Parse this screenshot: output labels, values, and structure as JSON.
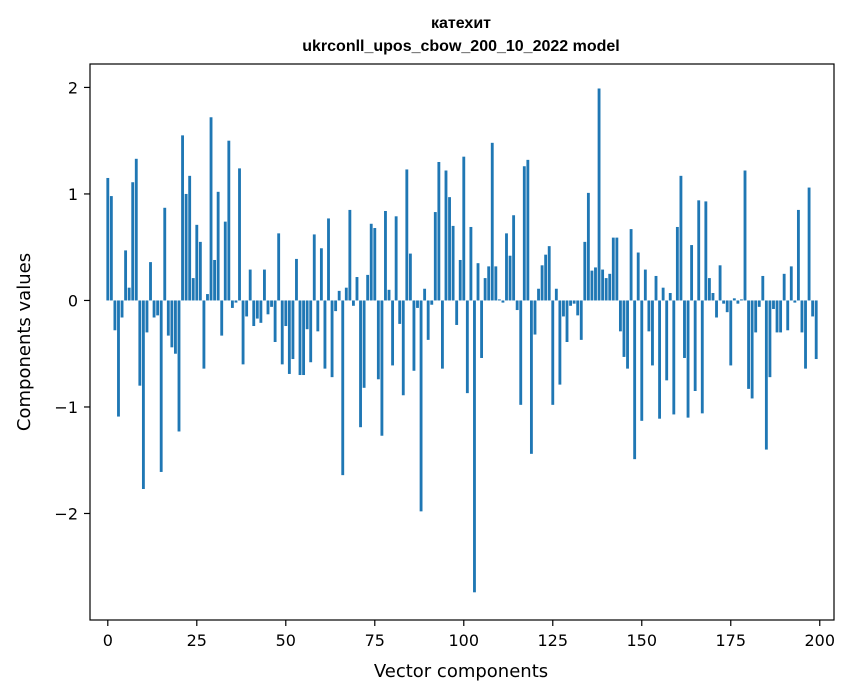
{
  "chart_data": {
    "type": "bar",
    "title": "катехит",
    "subtitle": "ukrconll_upos_cbow_200_10_2022 model",
    "xlabel": "Vector components",
    "ylabel": "Components values",
    "xlim": [
      -5,
      204
    ],
    "ylim": [
      -3.0,
      2.22
    ],
    "xticks": [
      0,
      25,
      50,
      75,
      100,
      125,
      150,
      175,
      200
    ],
    "yticks": [
      -2,
      -1,
      0,
      1,
      2
    ],
    "ytick_labels": [
      "−2",
      "−1",
      "0",
      "1",
      "2"
    ],
    "bar_color": "#1f77b4",
    "grid": false,
    "legend": "none",
    "values": [
      1.15,
      0.98,
      -0.28,
      -1.09,
      -0.16,
      0.47,
      0.12,
      1.11,
      1.33,
      -0.8,
      -1.77,
      -0.3,
      0.36,
      -0.16,
      -0.14,
      -1.61,
      0.87,
      -0.33,
      -0.44,
      -0.5,
      -1.23,
      1.55,
      1.0,
      1.17,
      0.21,
      0.71,
      0.55,
      -0.64,
      0.06,
      1.72,
      0.38,
      1.02,
      -0.33,
      0.74,
      1.5,
      -0.07,
      -0.02,
      1.24,
      -0.6,
      -0.15,
      0.29,
      -0.24,
      -0.17,
      -0.21,
      0.29,
      -0.13,
      -0.06,
      -0.39,
      0.63,
      -0.6,
      -0.24,
      -0.69,
      -0.55,
      0.39,
      -0.7,
      -0.7,
      -0.27,
      -0.58,
      0.62,
      -0.29,
      0.49,
      -0.64,
      0.77,
      -0.72,
      -0.1,
      0.09,
      -1.64,
      0.12,
      0.85,
      -0.05,
      0.22,
      -1.19,
      -0.82,
      0.24,
      0.72,
      0.68,
      -0.74,
      -1.27,
      0.84,
      0.1,
      -0.61,
      0.79,
      -0.22,
      -0.89,
      1.23,
      0.44,
      -0.66,
      -0.07,
      -1.98,
      0.11,
      -0.37,
      -0.04,
      0.83,
      1.3,
      -0.64,
      1.22,
      0.97,
      0.7,
      -0.23,
      0.38,
      1.35,
      -0.87,
      0.69,
      -2.74,
      0.35,
      -0.54,
      0.21,
      0.32,
      1.48,
      0.32,
      0.01,
      -0.02,
      0.63,
      0.42,
      0.8,
      -0.09,
      -0.98,
      1.26,
      1.32,
      -1.44,
      -0.32,
      0.11,
      0.33,
      0.43,
      0.51,
      -0.98,
      0.11,
      -0.79,
      -0.15,
      -0.39,
      -0.05,
      -0.03,
      -0.14,
      -0.37,
      0.55,
      1.01,
      0.28,
      0.31,
      1.99,
      0.29,
      0.21,
      0.25,
      0.59,
      0.59,
      -0.29,
      -0.53,
      -0.64,
      0.67,
      -1.49,
      0.45,
      -1.13,
      0.29,
      -0.29,
      -0.61,
      0.23,
      -1.11,
      0.12,
      -0.75,
      0.07,
      -1.07,
      0.69,
      1.17,
      -0.54,
      -1.1,
      0.52,
      -0.85,
      0.94,
      -1.06,
      0.93,
      0.21,
      0.07,
      -0.16,
      0.33,
      -0.03,
      -0.11,
      -0.61,
      0.02,
      -0.03,
      0.01,
      1.22,
      -0.83,
      -0.92,
      -0.3,
      -0.06,
      0.23,
      -1.4,
      -0.72,
      -0.08,
      -0.3,
      -0.3,
      0.25,
      -0.28,
      0.32,
      -0.02,
      0.85,
      -0.3,
      -0.64,
      1.06,
      -0.15,
      -0.55
    ]
  }
}
